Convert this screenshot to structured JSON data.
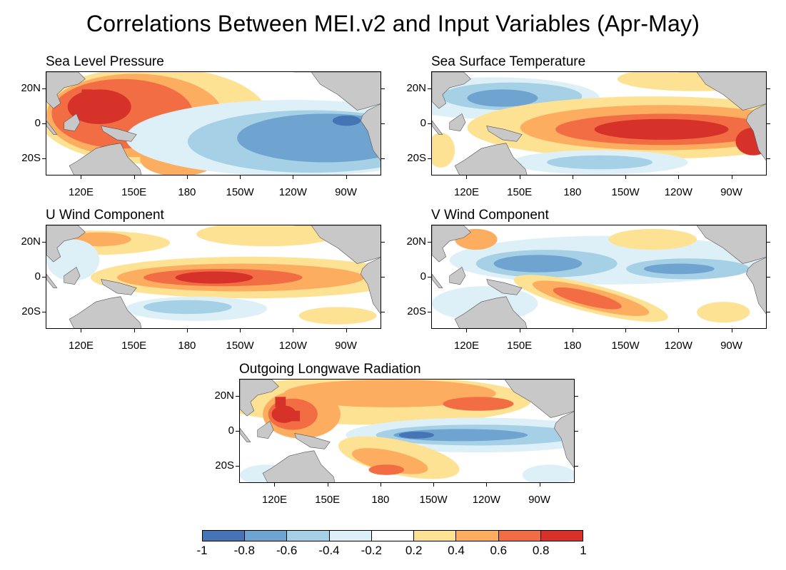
{
  "title": "Correlations Between MEI.v2 and Input Variables (Apr-May)",
  "palette": {
    "n4": "#4575b5",
    "n3": "#6fa3d0",
    "n2": "#a6d0e6",
    "n1": "#def0f7",
    "zero": "#ffffff",
    "p1": "#fee294",
    "p2": "#fdad60",
    "p3": "#f26d43",
    "p4": "#d7322a",
    "land": "#c8c8c8",
    "coast": "#555555"
  },
  "panels": [
    {
      "title": "Sea Level Pressure",
      "lat_labels": [
        "20N",
        "0",
        "20S"
      ],
      "lon_labels": [
        "120E",
        "150E",
        "180",
        "150W",
        "120W",
        "90W"
      ],
      "pattern": "slp"
    },
    {
      "title": "Sea Surface Temperature",
      "lat_labels": [
        "20N",
        "0",
        "20S"
      ],
      "lon_labels": [
        "120E",
        "150E",
        "180",
        "150W",
        "120W",
        "90W"
      ],
      "pattern": "sst"
    },
    {
      "title": "U Wind Component",
      "lat_labels": [
        "20N",
        "0",
        "20S"
      ],
      "lon_labels": [
        "120E",
        "150E",
        "180",
        "150W",
        "120W",
        "90W"
      ],
      "pattern": "u"
    },
    {
      "title": "V Wind Component",
      "lat_labels": [
        "20N",
        "0",
        "20S"
      ],
      "lon_labels": [
        "120E",
        "150E",
        "180",
        "150W",
        "120W",
        "90W"
      ],
      "pattern": "v"
    },
    {
      "title": "Outgoing Longwave Radiation",
      "lat_labels": [
        "20N",
        "0",
        "20S"
      ],
      "lon_labels": [
        "120E",
        "150E",
        "180",
        "150W",
        "120W",
        "90W"
      ],
      "pattern": "olr"
    }
  ],
  "colorbar": {
    "labels": [
      "-1",
      "-0.8",
      "-0.6",
      "-0.4",
      "-0.2",
      "0.2",
      "0.4",
      "0.6",
      "0.8",
      "1"
    ],
    "bins": [
      "n4",
      "n3",
      "n2",
      "n1",
      "zero",
      "p1",
      "p2",
      "p3",
      "p4"
    ]
  }
}
